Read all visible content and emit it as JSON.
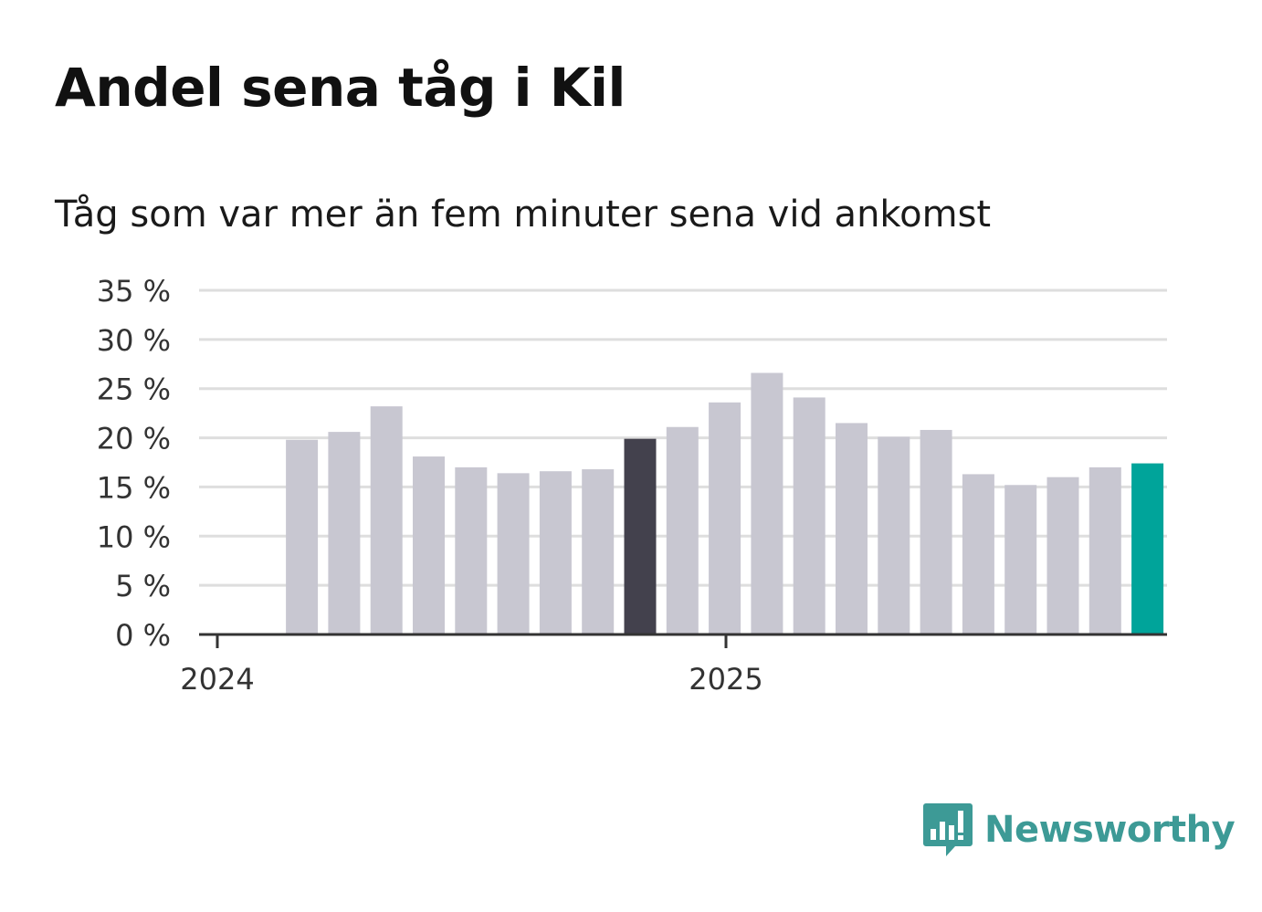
{
  "title": "Andel sena tåg i Kil",
  "subtitle": "Tåg som var mer än fem minuter sena vid ankomst",
  "brand": {
    "name": "Newsworthy",
    "color": "#3d9a96",
    "icon": "bar-chart-bubble-icon"
  },
  "colors": {
    "default_bar": "#c8c7d1",
    "highlight_bar": "#43414d",
    "latest_bar": "#00a49a",
    "grid": "#dedede",
    "axis": "#333333"
  },
  "chart_data": {
    "type": "bar",
    "title": "Andel sena tåg i Kil",
    "subtitle": "Tåg som var mer än fem minuter sena vid ankomst",
    "x": [
      "2024-02",
      "2024-03",
      "2024-04",
      "2024-05",
      "2024-06",
      "2024-07",
      "2024-08",
      "2024-09",
      "2024-10",
      "2024-11",
      "2024-12",
      "2025-01",
      "2025-02",
      "2025-03",
      "2025-04",
      "2025-05",
      "2025-06",
      "2025-07",
      "2025-08",
      "2025-09",
      "2025-10"
    ],
    "values": [
      19.8,
      20.6,
      23.2,
      18.1,
      17.0,
      16.4,
      16.6,
      16.8,
      19.9,
      21.1,
      23.6,
      26.6,
      24.1,
      21.5,
      20.1,
      20.8,
      16.3,
      15.2,
      16.0,
      17.0,
      17.4
    ],
    "highlight": {
      "2024-10": "highlight_bar",
      "2025-10": "latest_bar"
    },
    "x_ticks": [
      {
        "x": "2024-01",
        "label": "2024"
      },
      {
        "x": "2025-01",
        "label": "2025"
      }
    ],
    "y_ticks": [
      {
        "value": 0,
        "label": "0 %"
      },
      {
        "value": 5,
        "label": "5 %"
      },
      {
        "value": 10,
        "label": "10 %"
      },
      {
        "value": 15,
        "label": "15 %"
      },
      {
        "value": 20,
        "label": "20 %"
      },
      {
        "value": 25,
        "label": "25 %"
      },
      {
        "value": 30,
        "label": "30 %"
      },
      {
        "value": 35,
        "label": "35 %"
      }
    ],
    "ylim": [
      0,
      35
    ],
    "grid": true,
    "legend": "none"
  }
}
